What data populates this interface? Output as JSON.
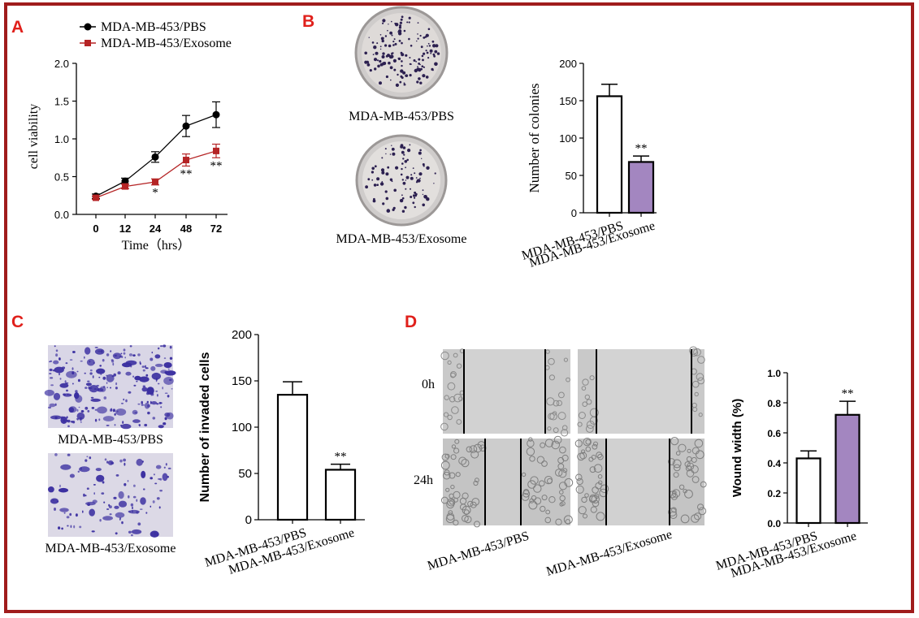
{
  "panels": {
    "a": {
      "letter": "A"
    },
    "b": {
      "letter": "B",
      "photo_labels": [
        "MDA-MB-453/PBS",
        "MDA-MB-453/Exosome"
      ]
    },
    "c": {
      "letter": "C",
      "photo_labels": [
        "MDA-MB-453/PBS",
        "MDA-MB-453/Exosome"
      ]
    },
    "d": {
      "letter": "D",
      "row_labels": [
        "0h",
        "24h"
      ],
      "column_labels": [
        "MDA-MB-453/PBS",
        "MDA-MB-453/Exosome"
      ]
    }
  },
  "colors": {
    "pbs_line": "#000000",
    "exo_line": "#b52425",
    "exo_bar": "#a386c0",
    "frame": "#a01c1c",
    "letters": "#e0201b"
  },
  "chart_data": [
    {
      "id": "A",
      "type": "line",
      "x": [
        0,
        12,
        24,
        48,
        72
      ],
      "x_ticks": [
        "0",
        "12",
        "24",
        "48",
        "72"
      ],
      "xlabel": "Time（hrs）",
      "ylabel": "cell viability",
      "ylim": [
        0.0,
        2.0
      ],
      "y_ticks": [
        "0.0",
        "0.5",
        "1.0",
        "1.5",
        "2.0"
      ],
      "series": [
        {
          "name": "MDA-MB-453/PBS",
          "values": [
            0.24,
            0.44,
            0.76,
            1.17,
            1.32
          ],
          "errors": [
            0.03,
            0.04,
            0.07,
            0.14,
            0.17
          ],
          "color": "#000000",
          "marker": "circle"
        },
        {
          "name": "MDA-MB-453/Exosome",
          "values": [
            0.22,
            0.37,
            0.43,
            0.72,
            0.84
          ],
          "errors": [
            0.02,
            0.03,
            0.04,
            0.08,
            0.09
          ],
          "color": "#b52425",
          "marker": "square"
        }
      ],
      "annotations": [
        "",
        "",
        "*",
        "**",
        "**"
      ],
      "legend": "top-left"
    },
    {
      "id": "B",
      "type": "bar",
      "categories": [
        "MDA-MB-453/PBS",
        "MDA-MB-453/Exosome"
      ],
      "values": [
        156,
        68
      ],
      "errors": [
        16,
        8
      ],
      "fills": [
        "#ffffff",
        "#a386c0"
      ],
      "ylabel": "Number of colonies",
      "ylim": [
        0,
        200
      ],
      "y_ticks": [
        "0",
        "50",
        "100",
        "150",
        "200"
      ],
      "annotations": [
        "",
        "**"
      ]
    },
    {
      "id": "C",
      "type": "bar",
      "categories": [
        "MDA-MB-453/PBS",
        "MDA-MB-453/Exosome"
      ],
      "values": [
        135,
        54
      ],
      "errors": [
        14,
        6
      ],
      "fills": [
        "#ffffff",
        "#ffffff"
      ],
      "ylabel": "Number of invaded cells",
      "ylim": [
        0,
        200
      ],
      "y_ticks": [
        "0",
        "50",
        "100",
        "150",
        "200"
      ],
      "annotations": [
        "",
        "**"
      ]
    },
    {
      "id": "D",
      "type": "bar",
      "categories": [
        "MDA-MB-453/PBS",
        "MDA-MB-453/Exosome"
      ],
      "values": [
        0.43,
        0.72
      ],
      "errors": [
        0.05,
        0.09
      ],
      "fills": [
        "#ffffff",
        "#a386c0"
      ],
      "ylabel": "Wound width (%)",
      "ylim": [
        0.0,
        1.0
      ],
      "y_ticks": [
        "0.0",
        "0.2",
        "0.4",
        "0.6",
        "0.8",
        "1.0"
      ],
      "annotations": [
        "",
        "**"
      ]
    }
  ]
}
